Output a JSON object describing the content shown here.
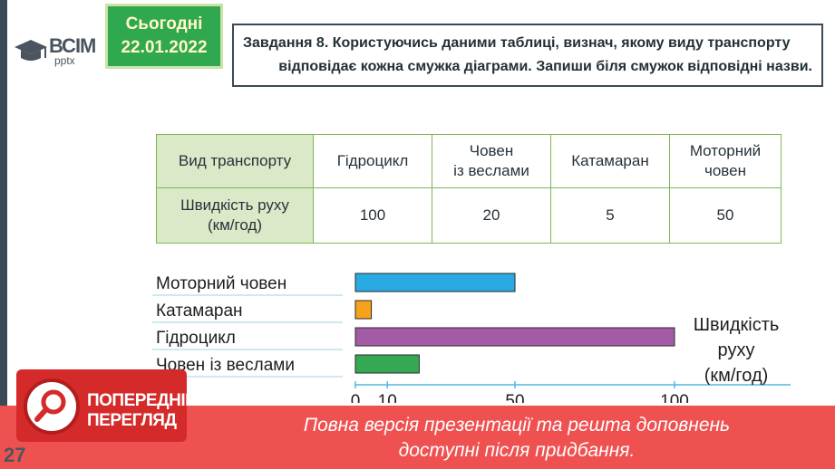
{
  "logo": {
    "main": "ВСІМ",
    "sub": "pptx"
  },
  "date": {
    "label": "Сьогодні",
    "value": "22.01.2022"
  },
  "task": {
    "line1": "Завдання 8. Користуючись даними таблиці, визнач, якому виду транспорту",
    "line2": "відповідає кожна смужка діаграми. Запиши біля смужок відповідні назви."
  },
  "table": {
    "header_label": "Вид  транспорту",
    "value_label_line1": "Швидкість руху",
    "value_label_line2": "(км/год)",
    "columns": [
      {
        "line1": "Гідроцикл",
        "line2": "",
        "value": "100"
      },
      {
        "line1": "Човен",
        "line2": "із  веслами",
        "value": "20"
      },
      {
        "line1": "Катамаран",
        "line2": "",
        "value": "5"
      },
      {
        "line1": "Моторний",
        "line2": "човен",
        "value": "50"
      }
    ]
  },
  "chart_data": {
    "type": "bar",
    "orientation": "horizontal",
    "categories": [
      "Моторний човен",
      "Катамаран",
      "Гідроцикл",
      "Човен із веслами"
    ],
    "values": [
      50,
      5,
      100,
      20
    ],
    "colors": [
      "#29aae2",
      "#f7a21b",
      "#a45ba6",
      "#34a853"
    ],
    "x_ticks": [
      "0",
      "10",
      "50",
      "100"
    ],
    "x_tick_values": [
      0,
      10,
      50,
      100
    ],
    "xlim": [
      0,
      100
    ],
    "axis_label": [
      "Швидкість",
      "руху",
      "(км/год)"
    ]
  },
  "banner": {
    "line1": "Повна версія презентації та решта доповнень",
    "line2": "доступні після придбання."
  },
  "preview": {
    "line1": "ПОПЕРЕДНІЙ",
    "line2": "ПЕРЕГЛЯД"
  },
  "page_number": "27"
}
